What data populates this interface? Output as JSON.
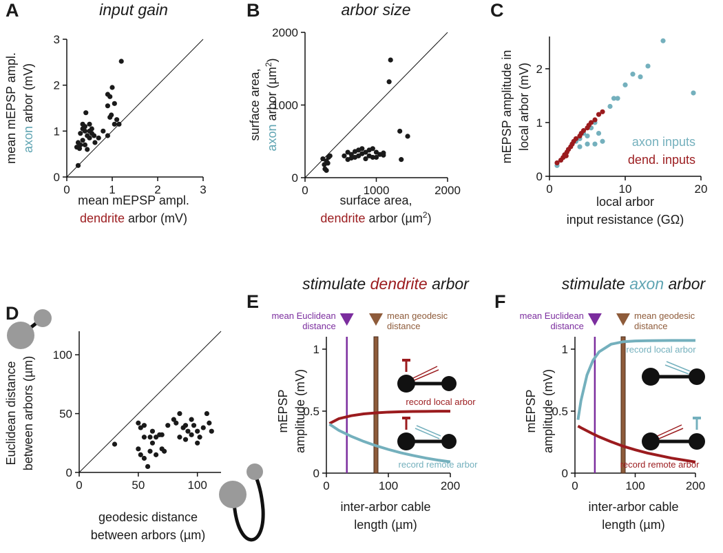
{
  "chart_data": [
    {
      "type": "scatter",
      "panel_label": "A",
      "title": [
        "input gain"
      ],
      "xlabel": [
        "mean mEPSP ampl.",
        [
          {
            "text": "dendrite",
            "color": "#9b1b1e"
          },
          {
            "text": " arbor (mV)"
          }
        ]
      ],
      "ylabel": [
        "mean mEPSP ampl.",
        [
          {
            "text": "axon",
            "color": "#5fa4b2"
          },
          {
            "text": " arbor (mV)"
          }
        ]
      ],
      "xlim": [
        0,
        3
      ],
      "ylim": [
        0,
        3
      ],
      "xticks": [
        0,
        1,
        2,
        3
      ],
      "yticks": [
        0,
        1,
        2,
        3
      ],
      "identity_line": true,
      "color": "#1a1a1a",
      "x": [
        0.25,
        0.22,
        0.25,
        0.3,
        0.35,
        0.3,
        0.35,
        0.4,
        0.4,
        0.45,
        0.5,
        0.5,
        0.42,
        0.55,
        0.6,
        0.7,
        0.62,
        0.45,
        0.4,
        0.55,
        0.8,
        0.9,
        0.95,
        0.9,
        0.9,
        0.95,
        1.0,
        0.98,
        1.05,
        1.05,
        1.1,
        1.15,
        1.2,
        0.35,
        0.5,
        0.28
      ],
      "values": [
        0.25,
        0.65,
        0.75,
        0.7,
        0.8,
        0.95,
        1.05,
        1.0,
        1.1,
        0.9,
        0.85,
        1.0,
        1.4,
        0.95,
        0.9,
        0.85,
        0.75,
        0.6,
        0.7,
        1.05,
        1.0,
        0.9,
        1.3,
        1.55,
        1.8,
        1.75,
        1.95,
        1.35,
        1.15,
        1.6,
        1.25,
        1.15,
        2.52,
        1.15,
        1.15,
        0.62
      ]
    },
    {
      "type": "scatter",
      "panel_label": "B",
      "title": [
        "arbor size"
      ],
      "xlabel": [
        "surface area,",
        [
          {
            "text": "dendrite",
            "color": "#9b1b1e"
          },
          {
            "text": " arbor (µm"
          },
          {
            "text": "2",
            "sup": true
          },
          {
            "text": ")"
          }
        ]
      ],
      "ylabel": [
        "surface area,",
        [
          {
            "text": "axon",
            "color": "#5fa4b2"
          },
          {
            "text": " arbor (µm"
          },
          {
            "text": "2",
            "sup": true
          },
          {
            "text": ")"
          }
        ]
      ],
      "xlim": [
        0,
        2000
      ],
      "ylim": [
        0,
        2000
      ],
      "xticks": [
        0,
        1000,
        2000
      ],
      "yticks": [
        0,
        1000,
        2000
      ],
      "identity_line": true,
      "color": "#1a1a1a",
      "x": [
        250,
        280,
        300,
        320,
        330,
        350,
        300,
        270,
        550,
        600,
        650,
        700,
        750,
        800,
        850,
        900,
        950,
        1000,
        1050,
        1100,
        700,
        750,
        800,
        900,
        950,
        1000,
        600,
        650,
        850,
        1100,
        1200,
        1180,
        1330,
        1440,
        1350
      ],
      "values": [
        260,
        120,
        100,
        200,
        280,
        300,
        230,
        180,
        300,
        250,
        320,
        360,
        300,
        330,
        350,
        300,
        280,
        350,
        320,
        310,
        280,
        380,
        400,
        380,
        400,
        280,
        350,
        270,
        260,
        340,
        1620,
        1320,
        640,
        570,
        250
      ]
    },
    {
      "type": "scatter",
      "panel_label": "C",
      "xlabel": [
        "local arbor",
        "input resistance (GΩ)"
      ],
      "ylabel": [
        "mEPSP amplitude in",
        "local arbor (mV)"
      ],
      "xlim": [
        0,
        20
      ],
      "ylim": [
        0,
        2.6
      ],
      "xticks": [
        0,
        10,
        20
      ],
      "yticks": [
        0,
        1,
        2
      ],
      "series": [
        {
          "name": "axon inputs",
          "color": "#74b0bd",
          "x": [
            1,
            1.5,
            2,
            2.5,
            3,
            3.5,
            4,
            4.5,
            5,
            5.5,
            6,
            6.5,
            7,
            6,
            8,
            8.5,
            9,
            10,
            11,
            12,
            13,
            15,
            19,
            5,
            4
          ],
          "values": [
            0.2,
            0.3,
            0.4,
            0.5,
            0.6,
            0.65,
            0.7,
            0.8,
            0.75,
            0.9,
            1.0,
            0.8,
            0.65,
            0.6,
            1.3,
            1.45,
            1.45,
            1.7,
            1.9,
            1.85,
            2.05,
            2.52,
            1.55,
            0.6,
            0.55
          ]
        },
        {
          "name": "dend. inputs",
          "color": "#9b1b1e",
          "x": [
            1,
            1.5,
            1.8,
            2,
            2.3,
            2.5,
            2.8,
            3,
            3.5,
            4,
            4.5,
            5,
            5.5,
            6,
            6.5,
            7,
            3.2,
            4.2,
            2.2,
            5.2
          ],
          "values": [
            0.25,
            0.3,
            0.35,
            0.4,
            0.45,
            0.5,
            0.55,
            0.6,
            0.7,
            0.75,
            0.85,
            0.9,
            1.0,
            1.05,
            1.15,
            1.2,
            0.65,
            0.8,
            0.38,
            0.95
          ]
        }
      ]
    },
    {
      "type": "scatter",
      "panel_label": "D",
      "xlabel": [
        "geodesic distance",
        "between arbors (µm)"
      ],
      "ylabel": [
        "Euclidean distance",
        "between arbors (µm)"
      ],
      "xlim": [
        0,
        120
      ],
      "ylim": [
        0,
        120
      ],
      "xticks": [
        0,
        50,
        100
      ],
      "yticks": [
        0,
        50,
        100
      ],
      "identity_line": true,
      "color": "#1a1a1a",
      "x": [
        30,
        50,
        52,
        55,
        50,
        52,
        55,
        58,
        60,
        55,
        60,
        62,
        65,
        68,
        70,
        72,
        75,
        80,
        82,
        85,
        88,
        90,
        92,
        95,
        97,
        100,
        102,
        105,
        108,
        110,
        112,
        85,
        90,
        95,
        62,
        65,
        70,
        100
      ],
      "values": [
        24,
        42,
        38,
        40,
        20,
        15,
        12,
        5,
        18,
        30,
        30,
        25,
        30,
        32,
        20,
        18,
        40,
        45,
        42,
        50,
        38,
        40,
        35,
        45,
        40,
        35,
        30,
        38,
        50,
        42,
        35,
        30,
        28,
        32,
        35,
        15,
        32,
        25
      ]
    },
    {
      "type": "line",
      "panel_label": "E",
      "title": [
        [
          {
            "text": "stimulate "
          },
          {
            "text": "dendrite",
            "color": "#9b1b1e"
          },
          {
            "text": " arbor"
          }
        ]
      ],
      "xlabel": [
        "inter-arbor cable",
        "length (µm)"
      ],
      "ylabel": [
        "mEPSP",
        "amplitude (mV)"
      ],
      "xlim": [
        0,
        200
      ],
      "ylim": [
        0,
        1.1
      ],
      "xticks": [
        0,
        100,
        200
      ],
      "yticks": [
        0,
        0.5,
        1
      ],
      "vlines": [
        {
          "x": 33,
          "color": "#7b2d9e",
          "label": [
            "mean Euclidean",
            "distance"
          ]
        },
        {
          "x": 80,
          "color": "#8e5b3a",
          "label": [
            "mean geodesic",
            "distance"
          ]
        }
      ],
      "x": [
        5,
        20,
        40,
        60,
        80,
        100,
        120,
        140,
        160,
        180,
        200
      ],
      "series": [
        {
          "name": "record local arbor",
          "color": "#9b1b1e",
          "values": [
            0.4,
            0.439,
            0.463,
            0.478,
            0.486,
            0.492,
            0.495,
            0.497,
            0.498,
            0.499,
            0.499
          ]
        },
        {
          "name": "record remote arbor",
          "color": "#74b0bd",
          "values": [
            0.395,
            0.345,
            0.297,
            0.256,
            0.221,
            0.191,
            0.164,
            0.142,
            0.122,
            0.105,
            0.091
          ]
        }
      ]
    },
    {
      "type": "line",
      "panel_label": "F",
      "title": [
        [
          {
            "text": "stimulate "
          },
          {
            "text": "axon",
            "color": "#5fa4b2"
          },
          {
            "text": " arbor"
          }
        ]
      ],
      "xlabel": [
        "inter-arbor cable",
        "length (µm)"
      ],
      "ylabel": [
        "mEPSP",
        "amplitude (mV)"
      ],
      "xlim": [
        0,
        200
      ],
      "ylim": [
        0,
        1.1
      ],
      "xticks": [
        0,
        100,
        200
      ],
      "yticks": [
        0,
        0.5,
        1
      ],
      "vlines": [
        {
          "x": 33,
          "color": "#7b2d9e",
          "label": [
            "mean Euclidean",
            "distance"
          ]
        },
        {
          "x": 80,
          "color": "#8e5b3a",
          "label": [
            "mean geodesic",
            "distance"
          ]
        }
      ],
      "x": [
        5,
        10,
        20,
        30,
        40,
        60,
        80,
        100,
        120,
        160,
        200
      ],
      "series": [
        {
          "name": "record local arbor",
          "color": "#74b0bd",
          "values": [
            0.43,
            0.585,
            0.792,
            0.91,
            0.978,
            1.04,
            1.06,
            1.066,
            1.068,
            1.07,
            1.07
          ]
        },
        {
          "name": "record remote arbor",
          "color": "#9b1b1e",
          "values": [
            0.38,
            0.366,
            0.341,
            0.316,
            0.293,
            0.253,
            0.217,
            0.188,
            0.162,
            0.121,
            0.09
          ]
        }
      ]
    }
  ]
}
